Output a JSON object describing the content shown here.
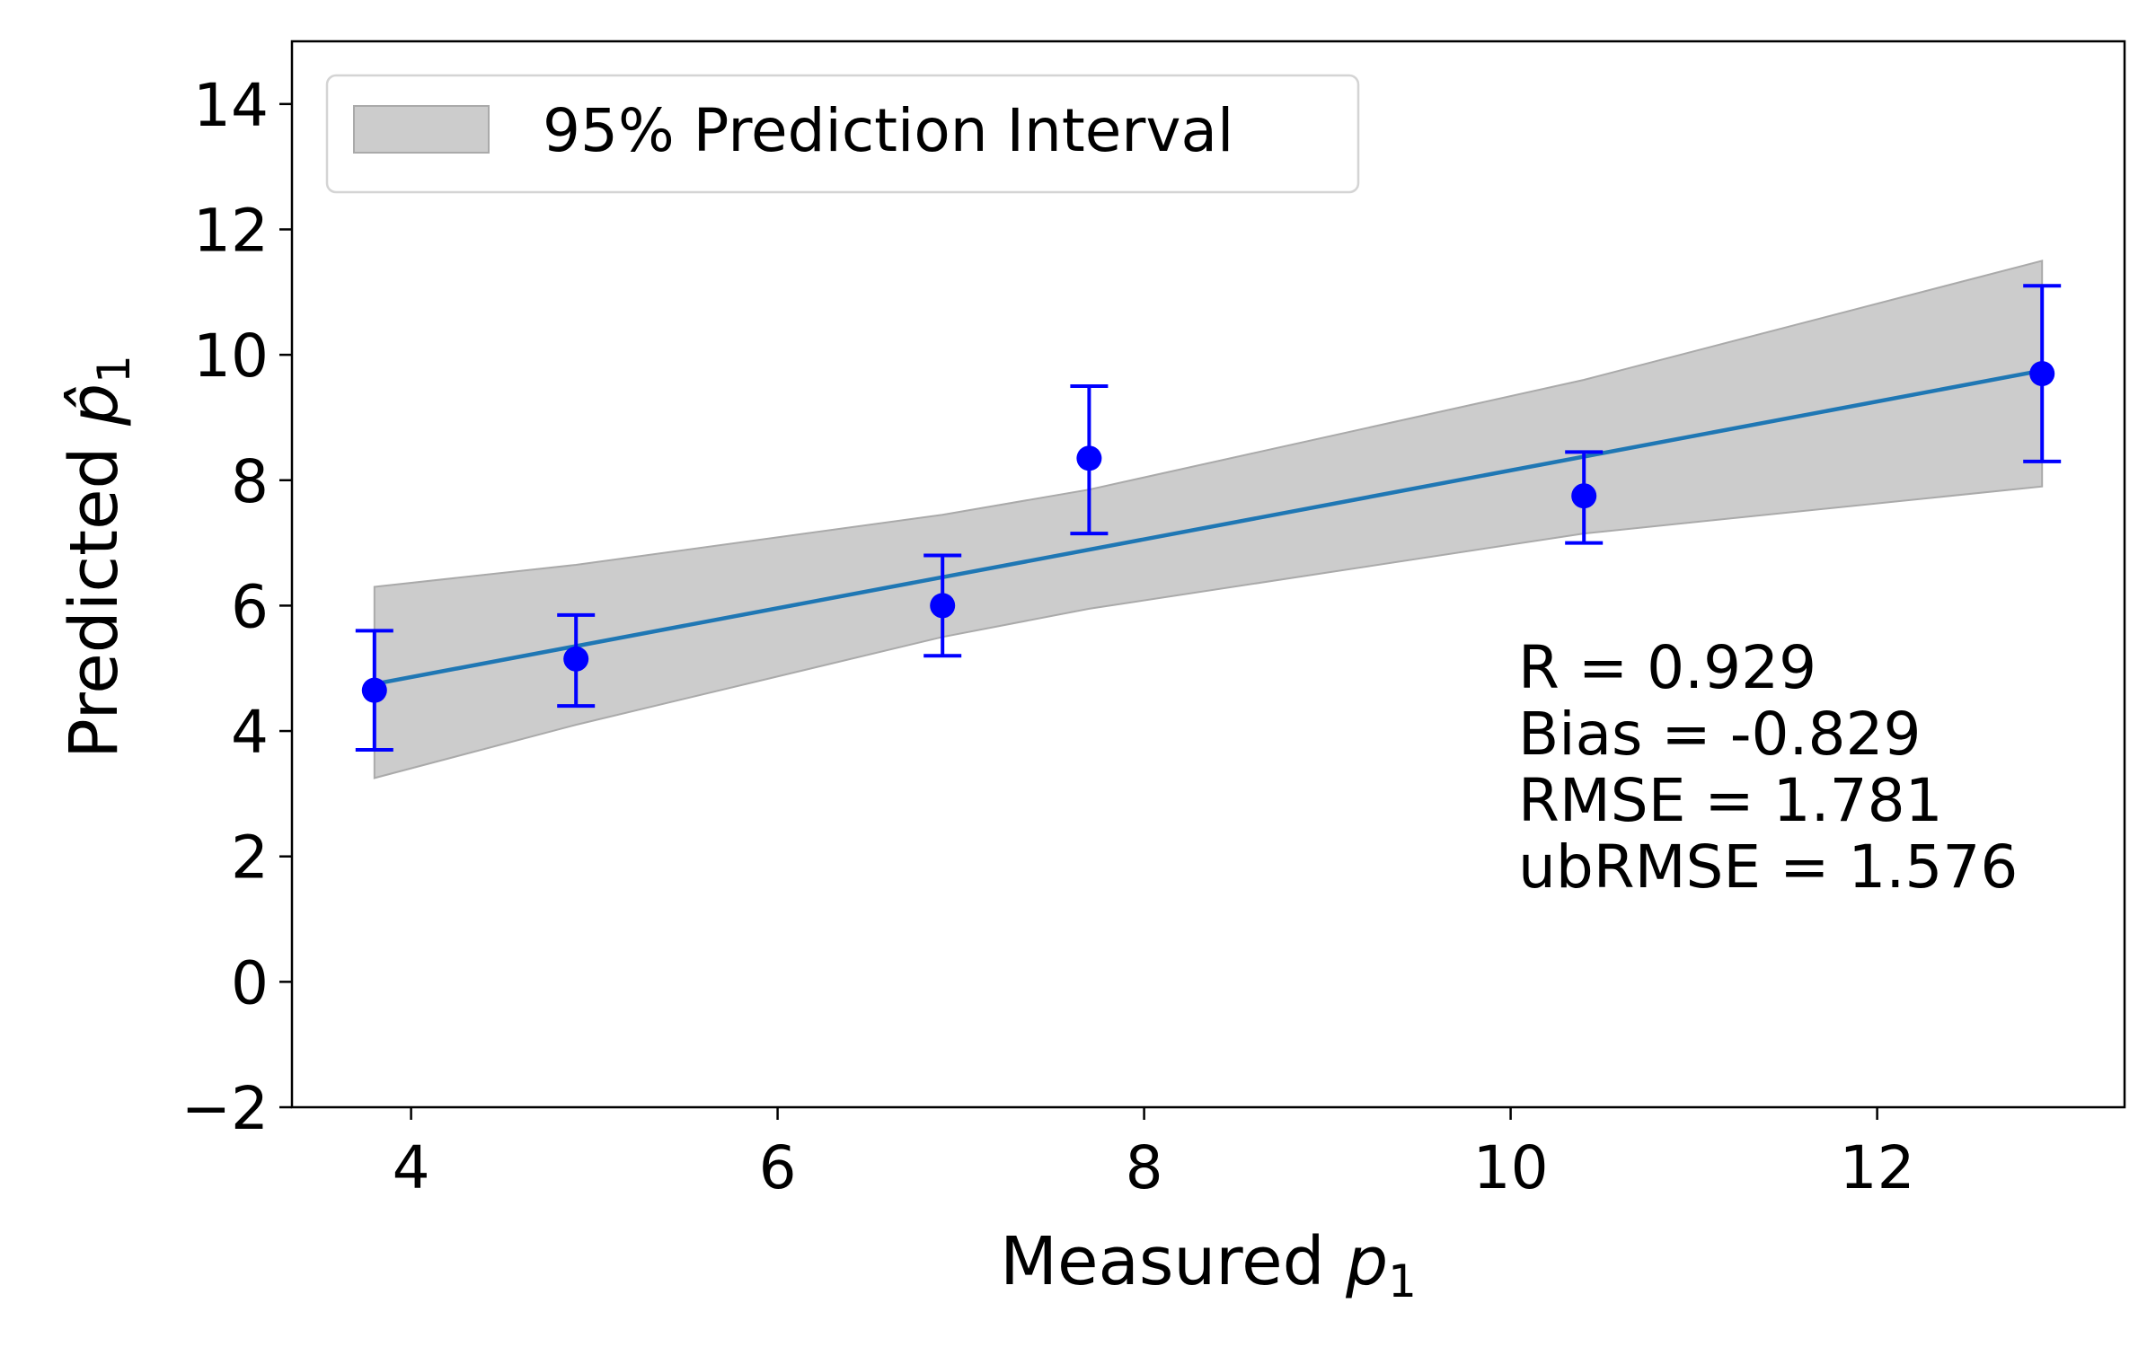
{
  "chart_data": {
    "type": "scatter",
    "title": "",
    "xlabel": "Measured",
    "xlabel_symbol": "p",
    "xlabel_subscript": "1",
    "ylabel": "Predicted",
    "ylabel_symbol": "p̂",
    "ylabel_subscript": "1",
    "xlim": [
      3.35,
      13.35
    ],
    "ylim": [
      -2,
      15
    ],
    "xticks": [
      4,
      6,
      8,
      10,
      12
    ],
    "yticks": [
      -2,
      0,
      2,
      4,
      6,
      8,
      10,
      12,
      14
    ],
    "xtick_labels": [
      "4",
      "6",
      "8",
      "10",
      "12"
    ],
    "ytick_labels": [
      "−2",
      "0",
      "2",
      "4",
      "6",
      "8",
      "10",
      "12",
      "14"
    ],
    "points": {
      "x": [
        3.8,
        4.9,
        6.9,
        7.7,
        10.4,
        12.9
      ],
      "y": [
        4.65,
        5.15,
        6.0,
        8.35,
        7.75,
        9.7
      ],
      "err_low": [
        3.7,
        4.4,
        5.2,
        7.15,
        7.0,
        8.3
      ],
      "err_high": [
        5.6,
        5.85,
        6.8,
        9.5,
        8.45,
        11.1
      ],
      "color": "#0000ff"
    },
    "fit_line": {
      "x": [
        3.8,
        12.9
      ],
      "y": [
        4.75,
        9.75
      ],
      "color": "#1f77b4"
    },
    "prediction_interval": {
      "x": [
        3.8,
        4.9,
        6.9,
        7.7,
        10.4,
        12.9
      ],
      "lower": [
        3.25,
        4.1,
        5.5,
        5.95,
        7.15,
        7.9
      ],
      "upper": [
        6.3,
        6.65,
        7.45,
        7.85,
        9.6,
        11.5
      ],
      "fill": "#cccccc",
      "edge": "#aaaaaa"
    },
    "legend": {
      "label": "95% Prediction Interval",
      "position": "top-left"
    },
    "stats": [
      "R = 0.929",
      "Bias = -0.829",
      "RMSE = 1.781",
      "ubRMSE = 1.576"
    ]
  }
}
